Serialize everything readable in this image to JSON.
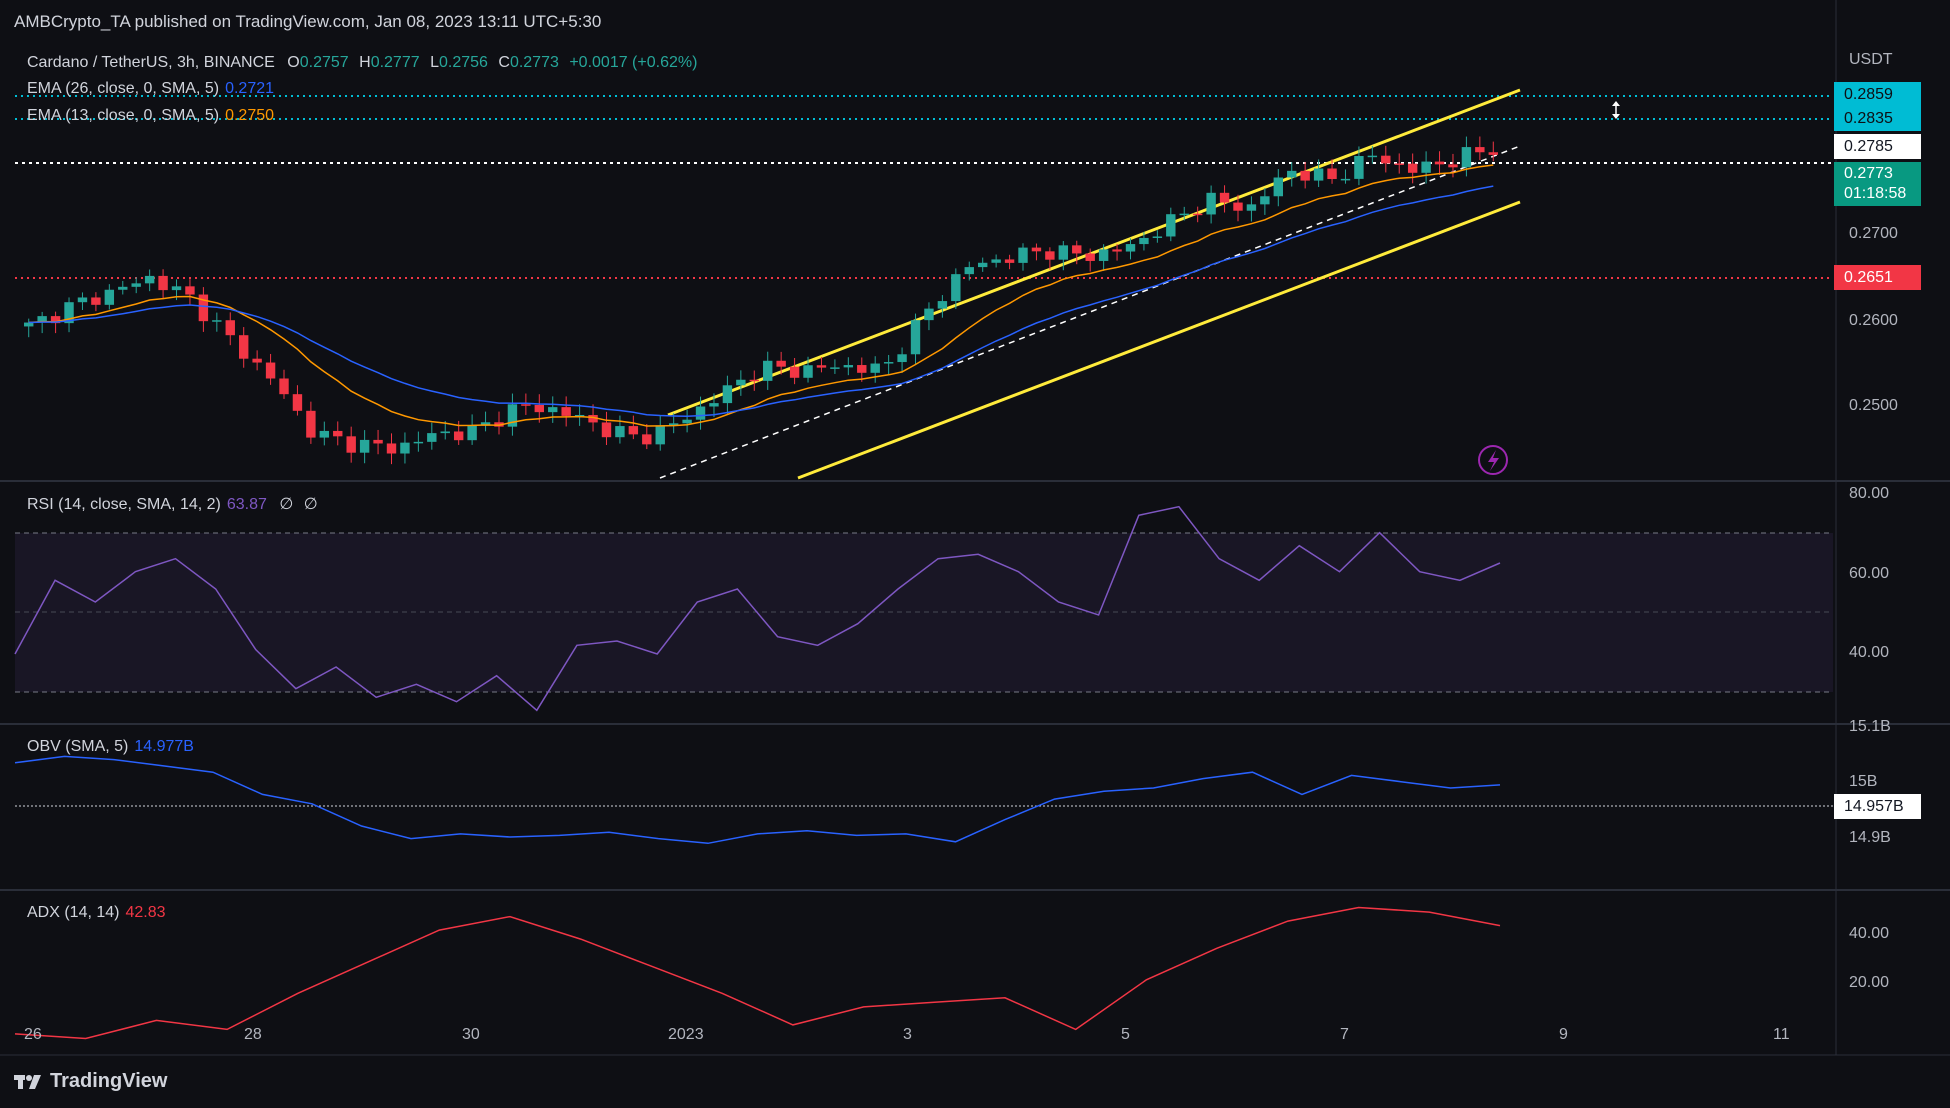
{
  "header": {
    "publisher": "AMBCrypto_TA published on TradingView.com, Jan 08, 2023 13:11 UTC+5:30"
  },
  "symbol": {
    "name": "Cardano / TetherUS, 3h, BINANCE",
    "o_label": "O",
    "o": "0.2757",
    "h_label": "H",
    "h": "0.2777",
    "l_label": "L",
    "l": "0.2756",
    "c_label": "C",
    "c": "0.2773",
    "change": "+0.0017 (+0.62%)"
  },
  "ema26": {
    "label": "EMA (26, close, 0, SMA, 5)",
    "value": "0.2721",
    "color": "#2962ff"
  },
  "ema13": {
    "label": "EMA (13, close, 0, SMA, 5)",
    "value": "0.2750",
    "color": "#ff9800"
  },
  "rsi": {
    "label": "RSI (14, close, SMA, 14, 2)",
    "value": "63.87",
    "extra1": "∅",
    "extra2": "∅",
    "color": "#7e57c2"
  },
  "obv": {
    "label": "OBV (SMA, 5)",
    "value": "14.977B",
    "color": "#2962ff"
  },
  "adx": {
    "label": "ADX (14, 14)",
    "value": "42.83",
    "color": "#f23645"
  },
  "price_axis": {
    "currency": "USDT",
    "ticks": [
      "0.2700",
      "0.2600",
      "0.2500"
    ],
    "tags": {
      "cyan1": "0.2859",
      "cyan2": "0.2835",
      "white": "0.2785",
      "last": "0.2773",
      "countdown": "01:18:58",
      "red": "0.2651"
    }
  },
  "rsi_axis": {
    "ticks": [
      "80.00",
      "60.00",
      "40.00"
    ]
  },
  "obv_axis": {
    "ticks": [
      "15.1B",
      "15B",
      "14.9B"
    ],
    "tag": "14.957B"
  },
  "adx_axis": {
    "ticks": [
      "40.00",
      "20.00"
    ]
  },
  "time_axis": {
    "ticks": [
      "26",
      "28",
      "30",
      "2023",
      "3",
      "5",
      "7",
      "9",
      "11"
    ]
  },
  "footer": {
    "brand": "TradingView"
  },
  "colors": {
    "up": "#26a69a",
    "down": "#f23645",
    "channel": "#ffeb3b",
    "cyan": "#00bcd4",
    "bg": "#0e0f14"
  },
  "chart_data": [
    {
      "type": "candlestick",
      "title": "Cardano / TetherUS, 3h, BINANCE",
      "x": [
        "26",
        "28",
        "30",
        "2023",
        "3",
        "5",
        "7",
        "9",
        "11"
      ],
      "close_approx": [
        0.259,
        0.261,
        0.2625,
        0.264,
        0.2618,
        0.2575,
        0.2535,
        0.248,
        0.247,
        0.2465,
        0.248,
        0.2483,
        0.2508,
        0.2505,
        0.2488,
        0.2475,
        0.2492,
        0.252,
        0.2548,
        0.2545,
        0.255,
        0.2545,
        0.26,
        0.265,
        0.266,
        0.2668,
        0.2662,
        0.267,
        0.2695,
        0.272,
        0.271,
        0.275,
        0.274,
        0.2765,
        0.275,
        0.276,
        0.2773
      ],
      "series": [
        {
          "name": "EMA (26, close, 0, SMA, 5)",
          "last": 0.2721
        },
        {
          "name": "EMA (13, close, 0, SMA, 5)",
          "last": 0.275
        }
      ],
      "horizontal_levels": [
        0.2859,
        0.2835,
        0.2785,
        0.2651
      ],
      "ylim": [
        0.2435,
        0.2885
      ]
    },
    {
      "type": "line",
      "title": "RSI (14, close, SMA, 14, 2)",
      "values_approx": [
        43,
        60,
        55,
        62,
        65,
        58,
        44,
        35,
        40,
        33,
        36,
        32,
        38,
        30,
        45,
        46,
        43,
        55,
        58,
        47,
        45,
        50,
        58,
        65,
        66,
        62,
        55,
        52,
        75,
        77,
        65,
        60,
        68,
        62,
        71,
        62,
        60,
        64
      ],
      "ylim": [
        28,
        82
      ],
      "bands": [
        70,
        50,
        30
      ]
    },
    {
      "type": "line",
      "title": "OBV (SMA, 5)",
      "last": "14.977B",
      "ylim": [
        "14.9B",
        "15.1B"
      ]
    },
    {
      "type": "line",
      "title": "ADX (14, 14)",
      "values_approx": [
        19,
        18,
        22,
        20,
        28,
        35,
        42,
        45,
        40,
        34,
        28,
        21,
        25,
        26,
        27,
        20,
        31,
        38,
        44,
        47,
        46,
        43
      ],
      "ylim": [
        15,
        50
      ]
    }
  ]
}
